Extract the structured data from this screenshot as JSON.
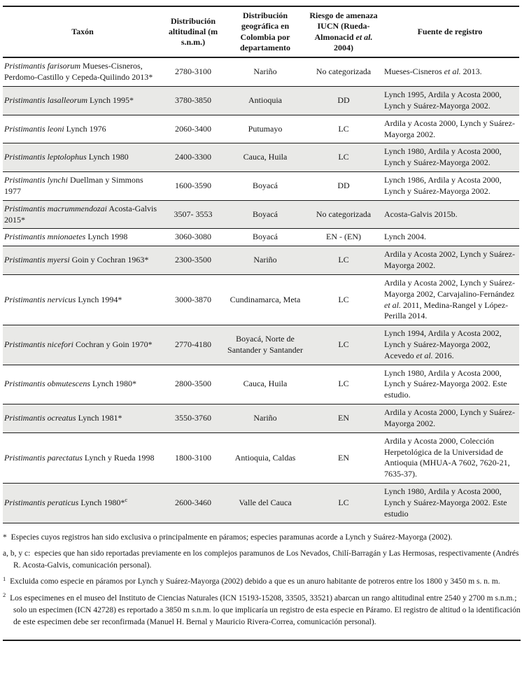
{
  "document": {
    "colors": {
      "row_shade": "#e9e9e7",
      "rule": "#1c1c1c",
      "text": "#161616",
      "background": "#ffffff"
    },
    "table": {
      "headers": [
        "Taxón",
        "Distribución altitudinal (m s.n.m.)",
        "Distribución geográfica en Colombia por departamento",
        "Riesgo de amenaza IUCN (Rueda-Almonacid ~et al.~ 2004)",
        "Fuente de registro"
      ],
      "rows": [
        {
          "taxon": "~Pristimantis farisorum~ Mueses-Cisneros, Perdomo-Castillo y Cepeda-Quilindo 2013*",
          "altitude": "2780-3100",
          "distribution": "Nariño",
          "iucn_risk": "No categorizada",
          "source": "Mueses-Cisneros ~et al.~ 2013."
        },
        {
          "taxon": "~Pristimantis lasalleorum~ Lynch 1995*",
          "altitude": "3780-3850",
          "distribution": "Antioquia",
          "iucn_risk": "DD",
          "source": "Lynch 1995, Ardila y Acosta 2000, Lynch y Suárez-Mayorga 2002."
        },
        {
          "taxon": "~Pristimantis leoni~ Lynch 1976",
          "altitude": "2060-3400",
          "distribution": "Putumayo",
          "iucn_risk": "LC",
          "source": "Ardila y Acosta 2000, Lynch y Suárez-Mayorga 2002."
        },
        {
          "taxon": "~Pristimantis leptolophus~ Lynch 1980",
          "altitude": "2400-3300",
          "distribution": "Cauca, Huila",
          "iucn_risk": "LC",
          "source": "Lynch 1980, Ardila y Acosta 2000, Lynch y Suárez-Mayorga 2002."
        },
        {
          "taxon": "~Pristimantis lynchi~ Duellman y Simmons 1977",
          "altitude": "1600-3590",
          "distribution": "Boyacá",
          "iucn_risk": "DD",
          "source": "Lynch 1986, Ardila y Acosta 2000, Lynch y Suárez-Mayorga 2002."
        },
        {
          "taxon": "~Pristimantis macrummendozai~ Acosta-Galvis 2015*",
          "altitude": "3507- 3553",
          "distribution": "Boyacá",
          "iucn_risk": "No categorizada",
          "source": "Acosta-Galvis 2015b."
        },
        {
          "taxon": "~Pristimantis mnionaetes~ Lynch 1998",
          "altitude": "3060-3080",
          "distribution": "Boyacá",
          "iucn_risk": "EN - (EN)",
          "source": "Lynch 2004."
        },
        {
          "taxon": "~Pristimantis myersi~ Goin y Cochran 1963*",
          "altitude": "2300-3500",
          "distribution": "Nariño",
          "iucn_risk": "LC",
          "source": "Ardila y Acosta 2002, Lynch y Suárez-Mayorga 2002."
        },
        {
          "taxon": "~Pristimantis nervicus~ Lynch 1994*",
          "altitude": "3000-3870",
          "distribution": "Cundinamarca, Meta",
          "iucn_risk": "LC",
          "source": "Ardila y Acosta 2002, Lynch y Suárez-Mayorga 2002, Carvajalino-Fernández ~et al.~ 2011, Medina-Rangel y López-Perilla 2014."
        },
        {
          "taxon": "~Pristimantis nicefori~ Cochran y Goin 1970*",
          "altitude": "2770-4180",
          "distribution": "Boyacá, Norte de Santander y Santander",
          "iucn_risk": "LC",
          "source": "Lynch 1994, Ardila y Acosta 2002, Lynch y Suárez-Mayorga 2002, Acevedo ~et al.~ 2016."
        },
        {
          "taxon": "~Pristimantis obmutescens~ Lynch 1980*",
          "altitude": "2800-3500",
          "distribution": "Cauca, Huila",
          "iucn_risk": "LC",
          "source": "Lynch 1980, Ardila y Acosta 2000, Lynch y Suárez-Mayorga 2002. Este estudio."
        },
        {
          "taxon": "~Pristimantis ocreatus~ Lynch 1981*",
          "altitude": "3550-3760",
          "distribution": "Nariño",
          "iucn_risk": "EN",
          "source": "Ardila y Acosta 2000, Lynch y Suárez-Mayorga 2002."
        },
        {
          "taxon": "~Pristimantis parectatus~ Lynch y Rueda 1998",
          "altitude": "1800-3100",
          "distribution": "Antioquia, Caldas",
          "iucn_risk": "EN",
          "source": "Ardila y Acosta 2000, Colección Herpetológica de la Universidad de Antioquia (MHUA-A 7602, 7620-21, 7635-37)."
        },
        {
          "taxon": "~Pristimantis peraticus~ Lynch 1980*^c^",
          "altitude": "2600-3460",
          "distribution": "Valle del Cauca",
          "iucn_risk": "LC",
          "source": "Lynch 1980, Ardila y Acosta 2000, Lynch y Suárez-Mayorga 2002. Este estudio"
        }
      ]
    },
    "footnotes": [
      {
        "marker": "*",
        "sup": false,
        "text": "Especies cuyos registros han sido exclusiva o principalmente en páramos; especies paramunas acorde a Lynch y Suárez-Mayorga (2002)."
      },
      {
        "marker": "a, b, y c:",
        "sup": false,
        "text": "especies que han sido reportadas previamente en los complejos paramunos de Los Nevados, Chilí-Barragán y Las Hermosas, respectivamente (Andrés R. Acosta-Galvis, comunicación personal)."
      },
      {
        "marker": "1",
        "sup": true,
        "text": "Excluida como especie en páramos por Lynch y Suárez-Mayorga (2002) debido a que es un anuro habitante de potreros entre los 1800 y 3450 m s. n. m."
      },
      {
        "marker": "2",
        "sup": true,
        "text": "Los especimenes en el museo del Instituto de Ciencias Naturales (ICN 15193-15208, 33505, 33521) abarcan un rango altitudinal entre 2540 y 2700 m s.n.m.; solo un especimen (ICN 42728) es reportado a 3850 m s.n.m. lo que implicaría un registro de esta especie en Páramo. El registro de altitud o la identificación de este especimen debe ser reconfirmada (Manuel H. Bernal y Mauricio Rivera-Correa, comunicación personal)."
      }
    ]
  }
}
